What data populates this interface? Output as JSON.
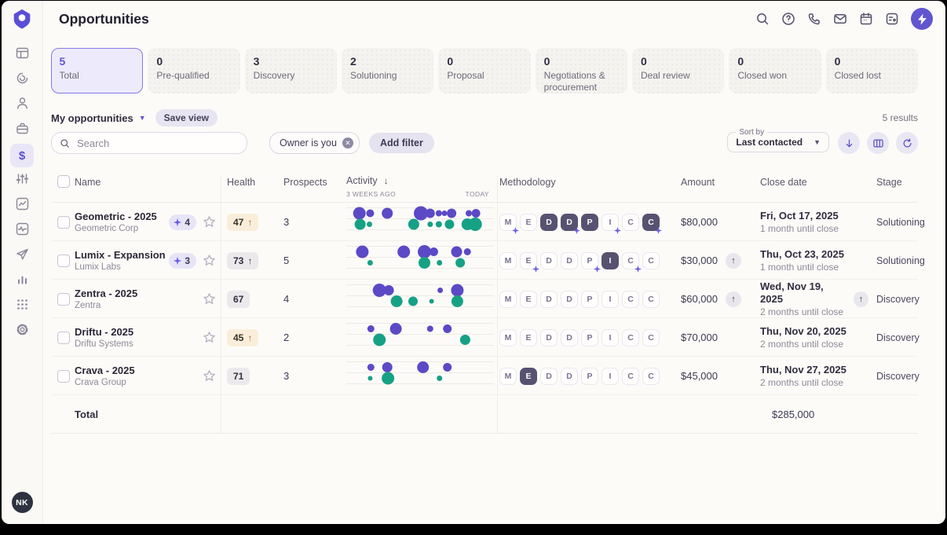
{
  "window": {
    "title": "Opportunities"
  },
  "sidebar": {
    "items": [
      "dashboard",
      "history",
      "people",
      "companies",
      "deals",
      "tuning",
      "chart-report",
      "media",
      "send",
      "bar-chart",
      "apps-grid",
      "settings"
    ],
    "active_item": "deals",
    "avatar_initials": "NK"
  },
  "header": {
    "title": "Opportunities",
    "icons": [
      "search",
      "help",
      "phone",
      "mail",
      "calendar",
      "shortcuts",
      "lightning"
    ]
  },
  "stage_cards": [
    {
      "count": "5",
      "label": "Total",
      "selected": true
    },
    {
      "count": "0",
      "label": "Pre-qualified",
      "selected": false
    },
    {
      "count": "3",
      "label": "Discovery",
      "selected": false
    },
    {
      "count": "2",
      "label": "Solutioning",
      "selected": false
    },
    {
      "count": "0",
      "label": "Proposal",
      "selected": false
    },
    {
      "count": "0",
      "label": "Negotiations & procurement",
      "selected": false
    },
    {
      "count": "0",
      "label": "Deal review",
      "selected": false
    },
    {
      "count": "0",
      "label": "Closed won",
      "selected": false
    },
    {
      "count": "0",
      "label": "Closed lost",
      "selected": false
    }
  ],
  "toolbar": {
    "view_name": "My opportunities",
    "save_view_label": "Save view",
    "search_placeholder": "Search",
    "filter_chip": "Owner is you",
    "add_filter_label": "Add filter",
    "results": "5 results",
    "sort_label": "Sort by",
    "sort_value": "Last contacted"
  },
  "table": {
    "headers": {
      "name": "Name",
      "health": "Health",
      "prospects": "Prospects",
      "activity": "Activity",
      "activity_start": "3 WEEKS AGO",
      "activity_end": "TODAY",
      "methodology": "Methodology",
      "amount": "Amount",
      "close_date": "Close date",
      "stage": "Stage"
    },
    "rows": [
      {
        "name": "Geometric - 2025",
        "company": "Geometric Corp",
        "ai_count": "4",
        "health": {
          "value": "47",
          "arrow": true,
          "tone": "amber"
        },
        "prospects": "3",
        "activity": {
          "purple": [
            [
              0.07,
              8
            ],
            [
              0.145,
              5
            ],
            [
              0.265,
              7
            ],
            [
              0.5,
              9
            ],
            [
              0.565,
              6
            ],
            [
              0.625,
              4
            ],
            [
              0.665,
              3.5
            ],
            [
              0.715,
              6
            ],
            [
              0.835,
              4
            ],
            [
              0.885,
              5.5
            ]
          ],
          "green": [
            [
              0.075,
              7
            ],
            [
              0.14,
              3.5
            ],
            [
              0.45,
              7
            ],
            [
              0.565,
              3.5
            ],
            [
              0.625,
              4
            ],
            [
              0.7,
              6
            ],
            [
              0.825,
              7.5
            ],
            [
              0.88,
              8.5
            ]
          ]
        },
        "methodology": [
          {
            "letter": "M",
            "filled": false,
            "sparkle": true
          },
          {
            "letter": "E",
            "filled": false,
            "sparkle": false
          },
          {
            "letter": "D",
            "filled": true,
            "sparkle": false
          },
          {
            "letter": "D",
            "filled": true,
            "sparkle": true
          },
          {
            "letter": "P",
            "filled": true,
            "sparkle": false
          },
          {
            "letter": "I",
            "filled": false,
            "sparkle": true
          },
          {
            "letter": "C",
            "filled": false,
            "sparkle": false
          },
          {
            "letter": "C",
            "filled": true,
            "sparkle": true
          }
        ],
        "amount": {
          "value": "$80,000",
          "arrow": false
        },
        "close": {
          "date": "Fri, Oct 17, 2025",
          "sub": "1 month until close",
          "arrow": false
        },
        "stage": "Solutioning"
      },
      {
        "name": "Lumix - Expansion",
        "company": "Lumix Labs",
        "ai_count": "3",
        "health": {
          "value": "73",
          "arrow": true,
          "tone": "gray"
        },
        "prospects": "5",
        "activity": {
          "purple": [
            [
              0.09,
              8
            ],
            [
              0.38,
              8
            ],
            [
              0.525,
              8.5
            ],
            [
              0.59,
              5.5
            ],
            [
              0.75,
              7
            ],
            [
              0.825,
              4.5
            ]
          ],
          "green": [
            [
              0.145,
              3.5
            ],
            [
              0.525,
              7.5
            ],
            [
              0.63,
              3.5
            ],
            [
              0.775,
              6
            ]
          ]
        },
        "methodology": [
          {
            "letter": "M",
            "filled": false,
            "sparkle": false
          },
          {
            "letter": "E",
            "filled": false,
            "sparkle": true
          },
          {
            "letter": "D",
            "filled": false,
            "sparkle": false
          },
          {
            "letter": "D",
            "filled": false,
            "sparkle": false
          },
          {
            "letter": "P",
            "filled": false,
            "sparkle": true
          },
          {
            "letter": "I",
            "filled": true,
            "sparkle": false
          },
          {
            "letter": "C",
            "filled": false,
            "sparkle": true
          },
          {
            "letter": "C",
            "filled": false,
            "sparkle": false
          }
        ],
        "amount": {
          "value": "$30,000",
          "arrow": true
        },
        "close": {
          "date": "Thu, Oct 23, 2025",
          "sub": "1 month until close",
          "arrow": false
        },
        "stage": "Solutioning"
      },
      {
        "name": "Zentra - 2025",
        "company": "Zentra",
        "ai_count": null,
        "health": {
          "value": "67",
          "arrow": false,
          "tone": "gray"
        },
        "prospects": "4",
        "activity": {
          "purple": [
            [
              0.21,
              8.5
            ],
            [
              0.275,
              6.5
            ],
            [
              0.635,
              3.5
            ],
            [
              0.755,
              8
            ]
          ],
          "green": [
            [
              0.33,
              7.5
            ],
            [
              0.445,
              6
            ],
            [
              0.575,
              3
            ],
            [
              0.755,
              7.5
            ]
          ]
        },
        "methodology": [
          {
            "letter": "M",
            "filled": false,
            "sparkle": false
          },
          {
            "letter": "E",
            "filled": false,
            "sparkle": false
          },
          {
            "letter": "D",
            "filled": false,
            "sparkle": false
          },
          {
            "letter": "D",
            "filled": false,
            "sparkle": false
          },
          {
            "letter": "P",
            "filled": false,
            "sparkle": false
          },
          {
            "letter": "I",
            "filled": false,
            "sparkle": false
          },
          {
            "letter": "C",
            "filled": false,
            "sparkle": false
          },
          {
            "letter": "C",
            "filled": false,
            "sparkle": false
          }
        ],
        "amount": {
          "value": "$60,000",
          "arrow": true
        },
        "close": {
          "date": "Wed, Nov 19, 2025",
          "sub": "2 months until close",
          "arrow": true
        },
        "stage": "Discovery"
      },
      {
        "name": "Driftu - 2025",
        "company": "Driftu Systems",
        "ai_count": null,
        "health": {
          "value": "45",
          "arrow": true,
          "tone": "amber"
        },
        "prospects": "2",
        "activity": {
          "purple": [
            [
              0.15,
              4.5
            ],
            [
              0.325,
              7.5
            ],
            [
              0.565,
              4
            ],
            [
              0.685,
              5.5
            ]
          ],
          "green": [
            [
              0.21,
              8
            ],
            [
              0.81,
              6.5
            ]
          ]
        },
        "methodology": [
          {
            "letter": "M",
            "filled": false,
            "sparkle": false
          },
          {
            "letter": "E",
            "filled": false,
            "sparkle": false
          },
          {
            "letter": "D",
            "filled": false,
            "sparkle": false
          },
          {
            "letter": "D",
            "filled": false,
            "sparkle": false
          },
          {
            "letter": "P",
            "filled": false,
            "sparkle": false
          },
          {
            "letter": "I",
            "filled": false,
            "sparkle": false
          },
          {
            "letter": "C",
            "filled": false,
            "sparkle": false
          },
          {
            "letter": "C",
            "filled": false,
            "sparkle": false
          }
        ],
        "amount": {
          "value": "$70,000",
          "arrow": false
        },
        "close": {
          "date": "Thu, Nov 20, 2025",
          "sub": "2 months until close",
          "arrow": false
        },
        "stage": "Discovery"
      },
      {
        "name": "Crava - 2025",
        "company": "Crava Group",
        "ai_count": null,
        "health": {
          "value": "71",
          "arrow": false,
          "tone": "gray"
        },
        "prospects": "3",
        "activity": {
          "purple": [
            [
              0.15,
              4.5
            ],
            [
              0.265,
              6.5
            ],
            [
              0.515,
              7.5
            ],
            [
              0.685,
              5.5
            ]
          ],
          "green": [
            [
              0.145,
              3
            ],
            [
              0.27,
              8
            ],
            [
              0.63,
              3.5
            ]
          ]
        },
        "methodology": [
          {
            "letter": "M",
            "filled": false,
            "sparkle": false
          },
          {
            "letter": "E",
            "filled": true,
            "sparkle": false
          },
          {
            "letter": "D",
            "filled": false,
            "sparkle": false
          },
          {
            "letter": "D",
            "filled": false,
            "sparkle": false
          },
          {
            "letter": "P",
            "filled": false,
            "sparkle": false
          },
          {
            "letter": "I",
            "filled": false,
            "sparkle": false
          },
          {
            "letter": "C",
            "filled": false,
            "sparkle": false
          },
          {
            "letter": "C",
            "filled": false,
            "sparkle": false
          }
        ],
        "amount": {
          "value": "$45,000",
          "arrow": false
        },
        "close": {
          "date": "Thu, Nov 27, 2025",
          "sub": "2 months until close",
          "arrow": false
        },
        "stage": "Discovery"
      }
    ],
    "total": {
      "label": "Total",
      "amount": "$285,000"
    }
  },
  "colors": {
    "accent": "#6156cf",
    "activity_purple": "#5b49c6",
    "activity_green": "#16a185",
    "gridline": "#ecebe6",
    "methodology_filled": "#575270",
    "sparkle": "#6a5ce8",
    "health_amber_bg": "#faeeda",
    "pill_gray_bg": "#ebe9ec"
  }
}
